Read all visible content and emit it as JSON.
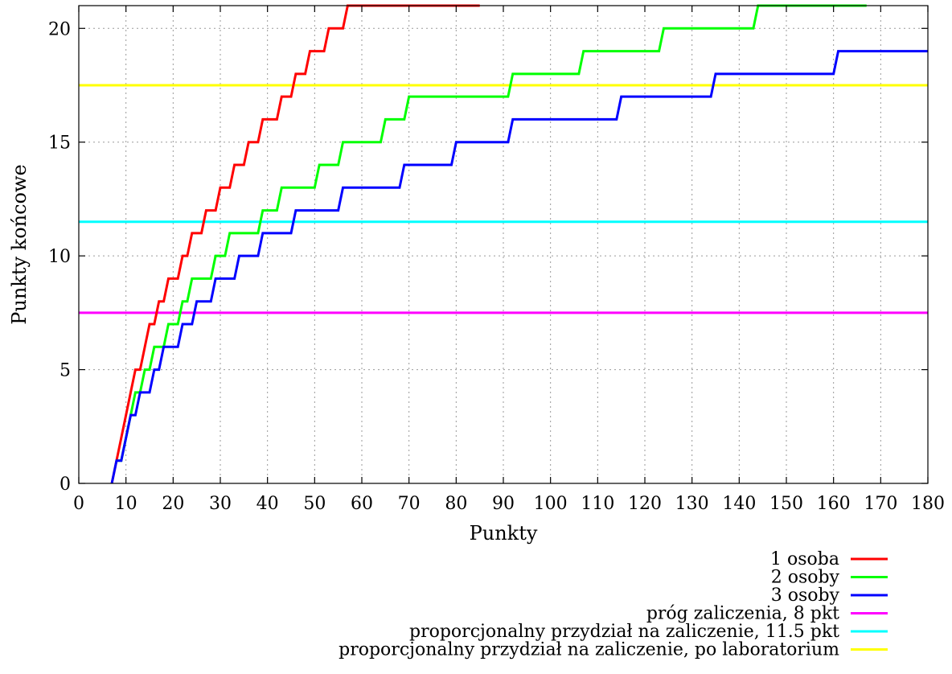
{
  "chart_data": {
    "type": "line",
    "xlabel": "Punkty",
    "ylabel": "Punkty końcowe",
    "xlim": [
      0,
      180
    ],
    "ylim": [
      0,
      21
    ],
    "xticks": [
      0,
      10,
      20,
      30,
      40,
      50,
      60,
      70,
      80,
      90,
      100,
      110,
      120,
      130,
      140,
      150,
      160,
      170,
      180
    ],
    "yticks": [
      0,
      5,
      10,
      15,
      20
    ],
    "grid": true,
    "legend_position": "bottom-right, below plot",
    "series": [
      {
        "name": "1 osoba",
        "color": "#ff0000",
        "x": [
          7,
          9,
          10,
          11,
          12,
          13,
          14,
          15,
          16,
          17,
          18,
          19,
          21,
          22,
          23,
          24,
          26,
          27,
          29,
          30,
          32,
          33,
          35,
          36,
          38,
          39,
          42,
          43,
          45,
          46,
          48,
          49,
          52,
          53,
          56,
          57,
          59,
          60,
          63,
          64,
          67,
          68,
          75,
          76,
          84,
          85
        ],
        "y": [
          0,
          2,
          3,
          4,
          5,
          5,
          6,
          7,
          7,
          8,
          8,
          9,
          9,
          10,
          10,
          11,
          11,
          12,
          12,
          13,
          13,
          14,
          14,
          15,
          15,
          16,
          16,
          17,
          17,
          18,
          18,
          19,
          19,
          20,
          20,
          21,
          21,
          21,
          21,
          21,
          21,
          21,
          21,
          21,
          21,
          21
        ]
      },
      {
        "name": "2 osoby",
        "color": "#00ff00",
        "x": [
          8,
          9,
          10,
          11,
          12,
          13,
          14,
          15,
          16,
          17,
          18,
          19,
          21,
          22,
          23,
          24,
          25,
          26,
          28,
          29,
          31,
          32,
          34,
          35,
          38,
          39,
          42,
          43,
          46,
          47,
          50,
          51,
          55,
          56,
          59,
          60,
          64,
          65,
          69,
          70,
          78,
          79,
          91,
          92,
          106,
          107,
          123,
          124,
          143,
          144,
          166,
          167
        ],
        "y": [
          1,
          1,
          2,
          3,
          4,
          4,
          5,
          5,
          6,
          6,
          6,
          7,
          7,
          8,
          8,
          9,
          9,
          9,
          9,
          10,
          10,
          11,
          11,
          11,
          11,
          12,
          12,
          13,
          13,
          13,
          13,
          14,
          14,
          15,
          15,
          15,
          15,
          16,
          16,
          17,
          17,
          17,
          17,
          18,
          18,
          19,
          19,
          20,
          20,
          21,
          21,
          21
        ]
      },
      {
        "name": "3 osoby",
        "color": "#0000ff",
        "x": [
          7,
          8,
          9,
          10,
          11,
          12,
          13,
          14,
          15,
          16,
          17,
          18,
          19,
          21,
          22,
          24,
          25,
          26,
          28,
          29,
          33,
          34,
          38,
          39,
          45,
          46,
          55,
          56,
          61,
          62,
          68,
          69,
          79,
          80,
          91,
          92,
          107,
          108,
          114,
          115,
          134,
          135,
          160,
          161,
          180
        ],
        "y": [
          0,
          1,
          1,
          2,
          3,
          3,
          4,
          4,
          4,
          5,
          5,
          6,
          6,
          6,
          7,
          7,
          8,
          8,
          8,
          9,
          9,
          10,
          10,
          11,
          11,
          12,
          12,
          13,
          13,
          13,
          13,
          14,
          14,
          15,
          15,
          16,
          16,
          16,
          16,
          17,
          17,
          18,
          18,
          19,
          19
        ]
      },
      {
        "name": "próg zaliczenia, 8 pkt",
        "color": "#ff00ff",
        "x": [
          0,
          180
        ],
        "y": [
          7.5,
          7.5
        ]
      },
      {
        "name": "proporcjonalny przydział na zaliczenie, 11.5 pkt",
        "color": "#00ffff",
        "x": [
          0,
          180
        ],
        "y": [
          11.5,
          11.5
        ]
      },
      {
        "name": "proporcjonalny przydział na zaliczenie, po laboratorium",
        "color": "#ffff00",
        "x": [
          0,
          180
        ],
        "y": [
          17.5,
          17.5
        ]
      }
    ]
  }
}
